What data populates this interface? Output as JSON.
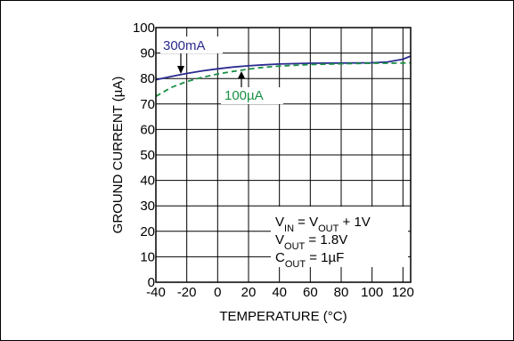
{
  "chart_data": {
    "type": "line",
    "xlabel": "TEMPERATURE (°C)",
    "ylabel": "GROUND CURRENT (µA)",
    "xlim": [
      -40,
      125
    ],
    "ylim": [
      0,
      100
    ],
    "x_ticks": [
      -40,
      -20,
      0,
      20,
      40,
      60,
      80,
      100,
      120
    ],
    "y_ticks": [
      0,
      10,
      20,
      30,
      40,
      50,
      60,
      70,
      80,
      90,
      100
    ],
    "grid": true,
    "series": [
      {
        "name": "300mA",
        "color": "#2b2b8f",
        "style": "solid",
        "x": [
          -40,
          -30,
          -20,
          -10,
          0,
          10,
          20,
          30,
          40,
          60,
          80,
          100,
          110,
          120,
          125
        ],
        "y": [
          79.5,
          80.8,
          82,
          83,
          83.8,
          84.5,
          85,
          85.4,
          85.7,
          86,
          86.1,
          86.2,
          86.5,
          87.6,
          88.8
        ]
      },
      {
        "name": "100µA",
        "color": "#1a9045",
        "style": "dashed",
        "x": [
          -40,
          -30,
          -20,
          -10,
          0,
          10,
          20,
          30,
          40,
          60,
          80,
          100,
          110,
          120,
          125
        ],
        "y": [
          73,
          76.5,
          78.8,
          80.5,
          81.8,
          82.8,
          83.7,
          84.4,
          84.9,
          85.5,
          85.8,
          86,
          86,
          86.1,
          86.2
        ]
      }
    ],
    "annotations": {
      "series_label_1": "300mA",
      "series_label_2": "100µA",
      "conditions": [
        {
          "a": "V",
          "a_sub": "IN",
          "b": " = V",
          "b_sub": "OUT",
          "c": " + 1V"
        },
        {
          "a": "V",
          "a_sub": "OUT",
          "b": " = 1.8V",
          "b_sub": "",
          "c": ""
        },
        {
          "a": "C",
          "a_sub": "OUT",
          "b": " = 1µF",
          "b_sub": "",
          "c": ""
        }
      ]
    }
  }
}
